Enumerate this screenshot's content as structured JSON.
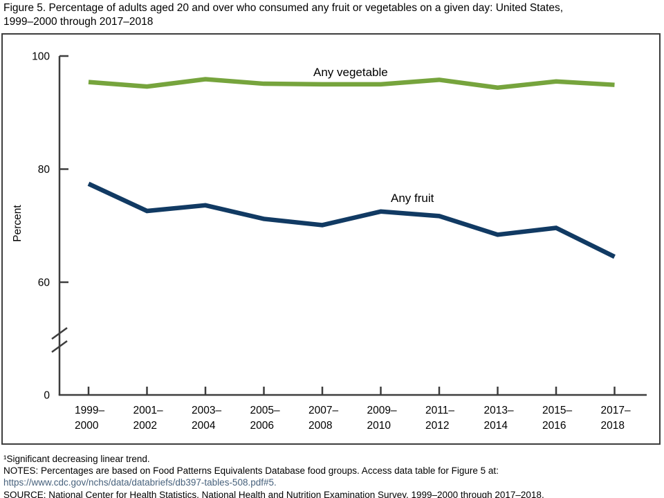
{
  "title": {
    "line1": "Figure 5. Percentage of adults aged 20 and over who consumed any fruit or vegetables on a given day: United States,",
    "line2": "1999–2000 through 2017–2018"
  },
  "chart_data": {
    "type": "line",
    "title": "",
    "xlabel": "",
    "ylabel": "Percent",
    "ylim": [
      0,
      100
    ],
    "yticks": [
      100,
      80,
      60,
      0
    ],
    "axis_break_between": [
      0,
      60
    ],
    "grid": "off",
    "legend_position": "inline-labels",
    "categories": [
      "1999–2000",
      "2001–2002",
      "2003–2004",
      "2005–2006",
      "2007–2008",
      "2009–2010",
      "2011–2012",
      "2013–2014",
      "2015–2016",
      "2017–2018"
    ],
    "series": [
      {
        "name": "Any vegetable",
        "color": "#76a43d",
        "values": [
          95.4,
          94.6,
          95.9,
          95.1,
          95.0,
          95.0,
          95.8,
          94.4,
          95.5,
          94.9
        ]
      },
      {
        "name": "Any fruit",
        "color": "#113a63",
        "values": [
          77.4,
          72.6,
          73.6,
          71.2,
          70.1,
          72.5,
          71.7,
          68.4,
          69.6,
          64.5
        ]
      }
    ]
  },
  "footnotes": {
    "note1": "¹Significant decreasing linear trend.",
    "note2": "NOTES: Percentages are based on Food Patterns Equivalents Database food groups. Access data table for Figure 5 at:",
    "note3": "https://www.cdc.gov/nchs/data/databriefs/db397-tables-508.pdf#5.",
    "note4": "SOURCE: National Center for Health Statistics, National Health and Nutrition Examination Survey, 1999–2000 through 2017–2018."
  },
  "colors": {
    "axis": "#3d3d3d",
    "frame": "#3d3d3d",
    "text": "#000000",
    "url_text": "#47617c"
  }
}
